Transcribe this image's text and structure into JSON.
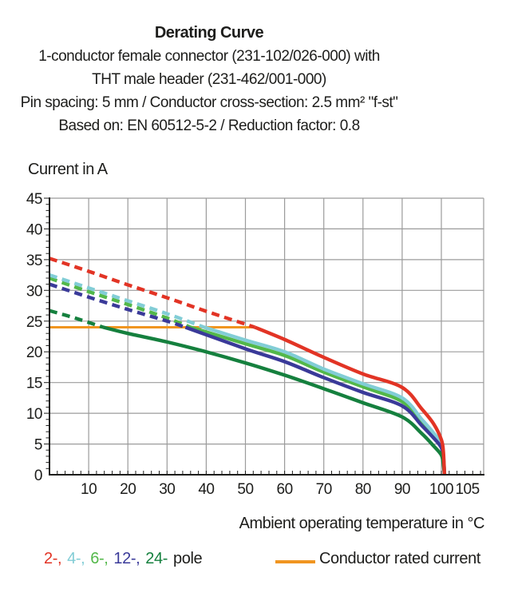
{
  "header": {
    "title": "Derating Curve",
    "lines": [
      "1-conductor female connector (231-102/026-000) with",
      "THT male header (231-462/001-000)",
      "Pin spacing: 5 mm / Conductor cross-section: 2.5 mm² \"f-st\"",
      "Based on: EN 60512-5-2 / Reduction factor: 0.8"
    ]
  },
  "chart_data": {
    "type": "line",
    "title": "Derating Curve",
    "ylabel": "Current in A",
    "xlabel": "Ambient operating temperature in °C",
    "xlim": [
      0,
      110.8
    ],
    "ylim": [
      0,
      45
    ],
    "x_ticks": [
      10,
      20,
      30,
      40,
      50,
      60,
      70,
      80,
      90,
      100,
      105
    ],
    "x_gridlines": [
      10,
      20,
      30,
      40,
      50,
      60,
      70,
      80,
      90,
      100
    ],
    "y_ticks": [
      0,
      5,
      10,
      15,
      20,
      25,
      30,
      35,
      40,
      45
    ],
    "grid_on": true,
    "grid_color": "#9b9b9b",
    "axis_color": "#1d1d1b",
    "x_minor_step": 2,
    "y_minor_step": 1,
    "line_style_note": "curves dashed above rated current, solid below",
    "rated_current": {
      "label": "Conductor rated current",
      "value": 24,
      "x_start": 0,
      "x_end": 52,
      "color": "#f09520"
    },
    "series": [
      {
        "name": "2-pole",
        "color": "#e23425",
        "z": 5,
        "solid_from": 52.4,
        "points": [
          [
            0,
            35.2
          ],
          [
            10,
            33.1
          ],
          [
            20,
            30.9
          ],
          [
            30,
            28.8
          ],
          [
            40,
            26.6
          ],
          [
            52.4,
            24
          ],
          [
            60,
            22
          ],
          [
            70,
            19.1
          ],
          [
            80,
            16.4
          ],
          [
            90,
            14.2
          ],
          [
            95,
            10.7
          ],
          [
            98,
            8.3
          ],
          [
            100,
            5.7
          ],
          [
            100.5,
            3.8
          ],
          [
            100.8,
            0
          ]
        ]
      },
      {
        "name": "4-pole",
        "color": "#82cdd6",
        "z": 2,
        "solid_from": 39.5,
        "points": [
          [
            0,
            32.5
          ],
          [
            10,
            30.4
          ],
          [
            20,
            28.3
          ],
          [
            30,
            26.2
          ],
          [
            39.5,
            24
          ],
          [
            50,
            21.9
          ],
          [
            60,
            20
          ],
          [
            70,
            17.2
          ],
          [
            80,
            14.8
          ],
          [
            90,
            12.5
          ],
          [
            95,
            9
          ],
          [
            98,
            6.8
          ],
          [
            100,
            5
          ],
          [
            100.5,
            3.2
          ],
          [
            100.8,
            0
          ]
        ]
      },
      {
        "name": "6-pole",
        "color": "#53b84a",
        "z": 1,
        "solid_from": 36,
        "points": [
          [
            0,
            32
          ],
          [
            10,
            29.8
          ],
          [
            20,
            27.7
          ],
          [
            30,
            25.5
          ],
          [
            36,
            24
          ],
          [
            50,
            21.3
          ],
          [
            60,
            19.4
          ],
          [
            70,
            16.7
          ],
          [
            80,
            14.3
          ],
          [
            90,
            11.9
          ],
          [
            95,
            8.6
          ],
          [
            98,
            6.5
          ],
          [
            100,
            4.8
          ],
          [
            100.5,
            3
          ],
          [
            100.8,
            0
          ]
        ]
      },
      {
        "name": "12-pole",
        "color": "#3a3a99",
        "z": 3,
        "solid_from": 34.7,
        "points": [
          [
            0,
            31
          ],
          [
            10,
            28.9
          ],
          [
            20,
            26.9
          ],
          [
            30,
            25
          ],
          [
            34.7,
            24
          ],
          [
            50,
            20.5
          ],
          [
            60,
            18.4
          ],
          [
            70,
            15.8
          ],
          [
            80,
            13.4
          ],
          [
            90,
            11.2
          ],
          [
            95,
            8
          ],
          [
            98,
            6
          ],
          [
            100,
            4.4
          ],
          [
            100.5,
            2.7
          ],
          [
            100.8,
            0
          ]
        ]
      },
      {
        "name": "24-pole",
        "color": "#15803e",
        "z": 4,
        "solid_from": 13.7,
        "points": [
          [
            0,
            26.7
          ],
          [
            7,
            25.4
          ],
          [
            13.7,
            24
          ],
          [
            20,
            23
          ],
          [
            30,
            21.6
          ],
          [
            40,
            20
          ],
          [
            50,
            18.2
          ],
          [
            60,
            16.2
          ],
          [
            70,
            14
          ],
          [
            80,
            11.7
          ],
          [
            90,
            9.4
          ],
          [
            95,
            6.7
          ],
          [
            98,
            4.7
          ],
          [
            100,
            3.2
          ],
          [
            100.5,
            1.7
          ],
          [
            100.8,
            0
          ]
        ]
      }
    ],
    "legend_position": "bottom"
  },
  "legend": {
    "poles": [
      {
        "text": "2-,",
        "color": "#e23425"
      },
      {
        "text": "4-,",
        "color": "#82cdd6"
      },
      {
        "text": "6-,",
        "color": "#53b84a"
      },
      {
        "text": "12-,",
        "color": "#3a3a99"
      },
      {
        "text": "24-",
        "color": "#15803e"
      },
      {
        "text": "pole",
        "color": "#1d1d1b"
      }
    ],
    "rated": {
      "label": "Conductor rated current",
      "color": "#f09520"
    }
  }
}
